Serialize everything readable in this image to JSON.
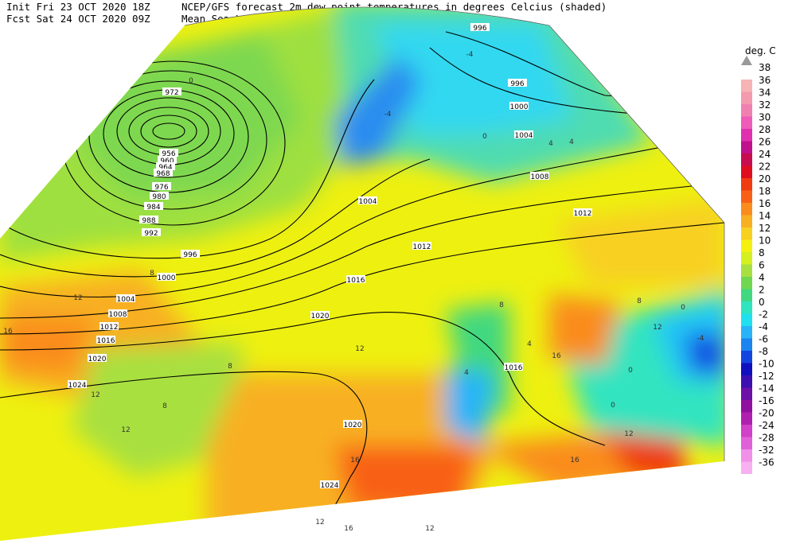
{
  "header": {
    "line1": "Init  Fri 23 OCT 2020 18Z",
    "line2": "Fcst Sat 24 OCT 2020 09Z",
    "title1": "NCEP/GFS forecast 2m dew point temperatures in degrees Celcius (shaded)",
    "title2": "Mean Sea-Level Pressure (hPa) (black)"
  },
  "legend": {
    "unit": "deg. C",
    "top": 38,
    "levels": [
      {
        "value": 36,
        "color": "#f6b4b4"
      },
      {
        "value": 34,
        "color": "#f49aae"
      },
      {
        "value": 32,
        "color": "#f080b0"
      },
      {
        "value": 30,
        "color": "#ee5cb8"
      },
      {
        "value": 28,
        "color": "#e030b0"
      },
      {
        "value": 26,
        "color": "#c0108c"
      },
      {
        "value": 24,
        "color": "#c80c50"
      },
      {
        "value": 22,
        "color": "#e00c20"
      },
      {
        "value": 20,
        "color": "#f03c10"
      },
      {
        "value": 18,
        "color": "#f86018"
      },
      {
        "value": 16,
        "color": "#fa8c1c"
      },
      {
        "value": 14,
        "color": "#f8b020"
      },
      {
        "value": 12,
        "color": "#f8d020"
      },
      {
        "value": 10,
        "color": "#f4f010"
      },
      {
        "value": 8,
        "color": "#d4f020"
      },
      {
        "value": 6,
        "color": "#a8e040"
      },
      {
        "value": 4,
        "color": "#70d850"
      },
      {
        "value": 2,
        "color": "#40d880"
      },
      {
        "value": 0,
        "color": "#30e4c0"
      },
      {
        "value": -2,
        "color": "#20e0f0"
      },
      {
        "value": -4,
        "color": "#28b4f8"
      },
      {
        "value": -6,
        "color": "#1c84f0"
      },
      {
        "value": -8,
        "color": "#1444e0"
      },
      {
        "value": -10,
        "color": "#1010c0"
      },
      {
        "value": -12,
        "color": "#3c10b0"
      },
      {
        "value": -14,
        "color": "#6c10a8"
      },
      {
        "value": -16,
        "color": "#9010a0"
      },
      {
        "value": -20,
        "color": "#b020b0"
      },
      {
        "value": -24,
        "color": "#d040c8"
      },
      {
        "value": -28,
        "color": "#e060d8"
      },
      {
        "value": -32,
        "color": "#f090e8"
      },
      {
        "value": -36,
        "color": "#f8b0f0"
      }
    ]
  },
  "isobar_labels": [
    996,
    996,
    1000,
    1004,
    1008,
    1012,
    972,
    956,
    960,
    964,
    968,
    976,
    980,
    984,
    988,
    992,
    996,
    1000,
    1004,
    1008,
    1012,
    1016,
    1020,
    1024,
    1004,
    1012,
    1016,
    1020,
    1016,
    1020,
    1024
  ],
  "dewpoint_labels": [
    -4,
    -4,
    0,
    0,
    4,
    4,
    8,
    12,
    16,
    12,
    8,
    12,
    16,
    12,
    8,
    0,
    0,
    12,
    16,
    16,
    12,
    16,
    12,
    -4,
    4,
    8,
    4,
    12,
    8,
    0
  ]
}
